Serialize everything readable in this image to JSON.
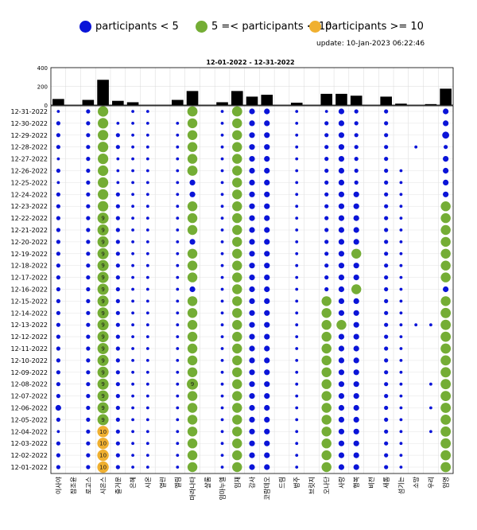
{
  "legend": [
    {
      "label": "participants < 5",
      "color": "#0a14d8"
    },
    {
      "label": "5 =< participants < 10",
      "color": "#74ad35"
    },
    {
      "label": "participants >= 10",
      "color": "#f0b030"
    }
  ],
  "update_text": "update: 10-Jan-2023 06:22:46",
  "chart_data": {
    "type": "scatter",
    "title": "12-01-2022  - 12-31-2022",
    "bar_yticks": [
      "0",
      "200",
      "400"
    ],
    "bar_ylim": [
      0,
      400
    ],
    "categories": [
      "이사야",
      "잠조윤",
      "로고스",
      "시온스",
      "즐거운",
      "은혜",
      "시온",
      "열린",
      "엘림",
      "마라나타",
      "샬롬",
      "임마누엘",
      "임재",
      "감사",
      "코람데오",
      "드림",
      "벙주",
      "브릿지",
      "오나단",
      "사랑",
      "행복",
      "비전",
      "새롬",
      "섬기는",
      "소망",
      "우리",
      "임명"
    ],
    "bar_values": [
      65,
      0,
      55,
      270,
      45,
      30,
      0,
      0,
      55,
      150,
      0,
      30,
      150,
      90,
      110,
      0,
      25,
      0,
      120,
      120,
      100,
      0,
      90,
      15,
      0,
      10,
      175
    ],
    "dates": [
      "12-31-2022",
      "12-30-2022",
      "12-29-2022",
      "12-28-2022",
      "12-27-2022",
      "12-26-2022",
      "12-25-2022",
      "12-24-2022",
      "12-23-2022",
      "12-22-2022",
      "12-21-2022",
      "12-20-2022",
      "12-19-2022",
      "12-18-2022",
      "12-17-2022",
      "12-16-2022",
      "12-15-2022",
      "12-14-2022",
      "12-13-2022",
      "12-12-2022",
      "12-11-2022",
      "12-10-2022",
      "12-09-2022",
      "12-08-2022",
      "12-07-2022",
      "12-06-2022",
      "12-05-2022",
      "12-04-2022",
      "12-03-2022",
      "12-02-2022",
      "12-01-2022"
    ],
    "grid": true,
    "matrix": [
      [
        1,
        0,
        2,
        8,
        0,
        1,
        1,
        0,
        0,
        7,
        0,
        1,
        7,
        3,
        3,
        0,
        1,
        0,
        1,
        3,
        2,
        0,
        2,
        0,
        0,
        0,
        3
      ],
      [
        2,
        0,
        2,
        8,
        1,
        1,
        1,
        0,
        1,
        6,
        0,
        1,
        6,
        3,
        3,
        0,
        1,
        0,
        2,
        3,
        2,
        0,
        2,
        0,
        0,
        0,
        3
      ],
      [
        2,
        0,
        2,
        8,
        2,
        1,
        1,
        0,
        1,
        6,
        0,
        1,
        6,
        3,
        3,
        0,
        1,
        0,
        2,
        3,
        2,
        0,
        2,
        0,
        0,
        0,
        4
      ],
      [
        2,
        0,
        2,
        8,
        2,
        1,
        1,
        0,
        1,
        6,
        0,
        1,
        6,
        3,
        3,
        0,
        1,
        0,
        2,
        3,
        2,
        0,
        2,
        0,
        1,
        0,
        2
      ],
      [
        1,
        0,
        2,
        8,
        1,
        1,
        1,
        0,
        1,
        6,
        0,
        1,
        6,
        3,
        3,
        0,
        1,
        0,
        2,
        3,
        2,
        0,
        2,
        0,
        0,
        0,
        3
      ],
      [
        2,
        0,
        2,
        8,
        1,
        1,
        1,
        0,
        1,
        7,
        0,
        1,
        6,
        3,
        3,
        0,
        1,
        0,
        2,
        3,
        2,
        0,
        2,
        1,
        0,
        0,
        3
      ],
      [
        1,
        0,
        2,
        8,
        1,
        1,
        1,
        0,
        1,
        3,
        0,
        1,
        6,
        3,
        3,
        0,
        1,
        0,
        2,
        3,
        2,
        0,
        2,
        1,
        0,
        0,
        3
      ],
      [
        2,
        0,
        2,
        8,
        2,
        1,
        1,
        0,
        1,
        3,
        0,
        1,
        6,
        3,
        3,
        0,
        1,
        0,
        2,
        3,
        3,
        0,
        2,
        1,
        0,
        0,
        3
      ],
      [
        2,
        0,
        2,
        8,
        2,
        1,
        1,
        0,
        1,
        6,
        0,
        1,
        6,
        3,
        3,
        0,
        1,
        0,
        2,
        3,
        3,
        0,
        2,
        1,
        0,
        0,
        6
      ],
      [
        2,
        0,
        2,
        9,
        2,
        1,
        1,
        0,
        1,
        6,
        0,
        1,
        6,
        3,
        3,
        0,
        1,
        0,
        2,
        3,
        3,
        0,
        2,
        1,
        0,
        0,
        6
      ],
      [
        2,
        0,
        2,
        9,
        2,
        1,
        1,
        0,
        1,
        6,
        0,
        1,
        6,
        3,
        3,
        0,
        1,
        0,
        2,
        3,
        3,
        0,
        2,
        1,
        0,
        0,
        6
      ],
      [
        2,
        0,
        2,
        9,
        2,
        1,
        1,
        0,
        1,
        3,
        0,
        1,
        6,
        3,
        3,
        0,
        1,
        0,
        2,
        3,
        3,
        0,
        2,
        1,
        0,
        0,
        6
      ],
      [
        2,
        0,
        2,
        9,
        2,
        1,
        1,
        0,
        1,
        6,
        0,
        1,
        6,
        3,
        3,
        0,
        1,
        0,
        2,
        3,
        6,
        0,
        2,
        1,
        0,
        0,
        6
      ],
      [
        2,
        0,
        2,
        9,
        2,
        1,
        1,
        0,
        1,
        6,
        0,
        1,
        6,
        3,
        3,
        0,
        1,
        0,
        2,
        3,
        3,
        0,
        2,
        1,
        0,
        0,
        6
      ],
      [
        2,
        0,
        2,
        9,
        2,
        1,
        1,
        0,
        1,
        6,
        0,
        1,
        6,
        3,
        3,
        0,
        1,
        0,
        2,
        3,
        3,
        0,
        2,
        1,
        0,
        0,
        6
      ],
      [
        2,
        0,
        2,
        9,
        2,
        1,
        1,
        0,
        1,
        3,
        0,
        1,
        6,
        3,
        3,
        0,
        1,
        0,
        2,
        3,
        6,
        0,
        2,
        1,
        0,
        0,
        3
      ],
      [
        2,
        0,
        2,
        9,
        2,
        1,
        1,
        0,
        1,
        6,
        0,
        1,
        6,
        3,
        3,
        0,
        1,
        0,
        6,
        3,
        3,
        0,
        2,
        1,
        0,
        0,
        6
      ],
      [
        2,
        0,
        2,
        9,
        2,
        1,
        1,
        0,
        1,
        6,
        0,
        1,
        6,
        3,
        3,
        0,
        1,
        0,
        6,
        3,
        3,
        0,
        2,
        1,
        0,
        0,
        7
      ],
      [
        2,
        0,
        2,
        9,
        2,
        1,
        1,
        0,
        1,
        6,
        0,
        1,
        6,
        3,
        3,
        0,
        1,
        0,
        6,
        6,
        3,
        0,
        2,
        1,
        1,
        1,
        7
      ],
      [
        2,
        0,
        2,
        9,
        2,
        1,
        1,
        0,
        1,
        6,
        0,
        1,
        6,
        3,
        3,
        0,
        1,
        0,
        6,
        3,
        3,
        0,
        2,
        1,
        0,
        0,
        7
      ],
      [
        2,
        0,
        2,
        9,
        2,
        1,
        1,
        0,
        1,
        6,
        0,
        1,
        6,
        3,
        3,
        0,
        1,
        0,
        6,
        3,
        3,
        0,
        2,
        1,
        0,
        0,
        7
      ],
      [
        2,
        0,
        2,
        9,
        2,
        1,
        1,
        0,
        1,
        6,
        0,
        1,
        6,
        3,
        3,
        0,
        1,
        0,
        6,
        3,
        3,
        0,
        2,
        1,
        0,
        0,
        7
      ],
      [
        2,
        0,
        2,
        9,
        2,
        1,
        1,
        0,
        1,
        6,
        0,
        1,
        6,
        3,
        3,
        0,
        1,
        0,
        6,
        3,
        3,
        0,
        2,
        1,
        0,
        0,
        7
      ],
      [
        2,
        0,
        2,
        9,
        2,
        1,
        1,
        0,
        1,
        9,
        0,
        1,
        6,
        3,
        3,
        0,
        1,
        0,
        6,
        3,
        3,
        0,
        2,
        1,
        0,
        1,
        7
      ],
      [
        2,
        0,
        2,
        9,
        2,
        1,
        1,
        0,
        1,
        6,
        0,
        1,
        6,
        3,
        3,
        0,
        1,
        0,
        6,
        3,
        3,
        0,
        2,
        1,
        0,
        0,
        7
      ],
      [
        3,
        0,
        2,
        9,
        2,
        1,
        1,
        0,
        1,
        6,
        0,
        1,
        6,
        3,
        3,
        0,
        1,
        0,
        6,
        3,
        3,
        0,
        2,
        1,
        0,
        1,
        7
      ],
      [
        2,
        0,
        2,
        9,
        2,
        1,
        1,
        0,
        1,
        6,
        0,
        1,
        6,
        3,
        3,
        0,
        1,
        0,
        6,
        3,
        3,
        0,
        2,
        1,
        0,
        0,
        7
      ],
      [
        1,
        0,
        2,
        10,
        2,
        1,
        1,
        0,
        1,
        6,
        0,
        1,
        6,
        3,
        3,
        0,
        1,
        0,
        6,
        3,
        3,
        0,
        2,
        1,
        0,
        1,
        7
      ],
      [
        2,
        0,
        2,
        10,
        2,
        1,
        1,
        0,
        1,
        6,
        0,
        1,
        6,
        3,
        3,
        0,
        1,
        0,
        6,
        3,
        3,
        0,
        2,
        1,
        0,
        0,
        7
      ],
      [
        2,
        0,
        2,
        10,
        2,
        1,
        1,
        0,
        1,
        6,
        0,
        1,
        6,
        3,
        3,
        0,
        1,
        0,
        6,
        3,
        3,
        0,
        2,
        1,
        0,
        0,
        7
      ],
      [
        2,
        0,
        2,
        10,
        2,
        1,
        1,
        0,
        1,
        6,
        0,
        1,
        6,
        3,
        3,
        0,
        1,
        0,
        6,
        3,
        3,
        0,
        2,
        1,
        0,
        0,
        7
      ]
    ]
  }
}
